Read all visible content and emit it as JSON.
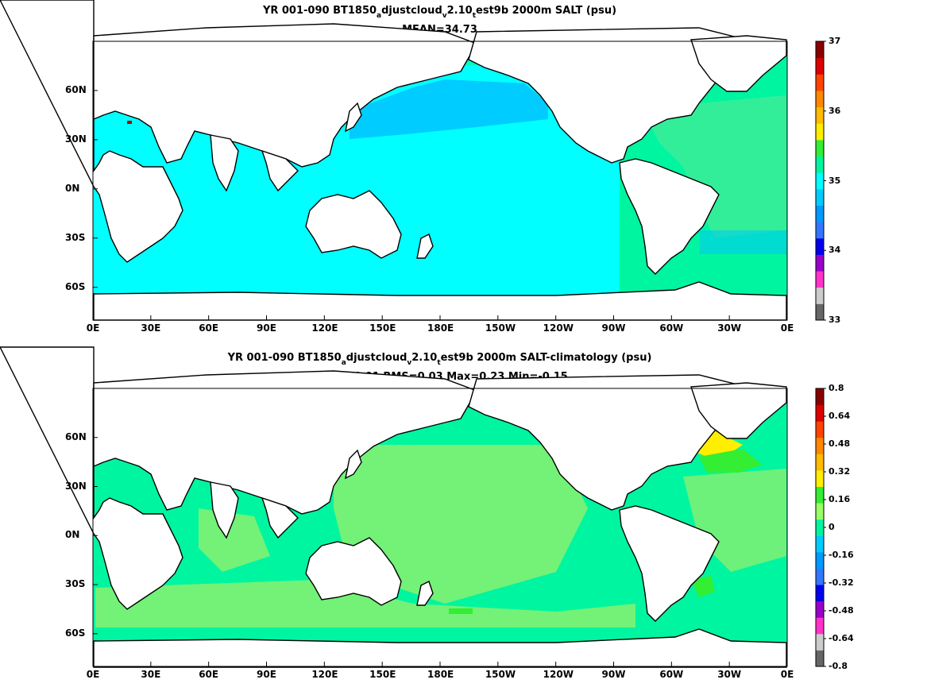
{
  "panel1": {
    "title_parts": [
      "YR 001-090 BT1850",
      "a",
      "djustcloud",
      "v",
      "2.10",
      "t",
      "est9b 2000m SALT (psu)"
    ],
    "stats": "MEAN=34.73",
    "colorbar_ticks": [
      "37",
      "36",
      "35",
      "34",
      "33"
    ],
    "colorbar_colors": [
      "#666666",
      "#cccccc",
      "#ff33cc",
      "#9900cc",
      "#0000ee",
      "#3377ff",
      "#0099ff",
      "#00ccff",
      "#00ffff",
      "#00f5a0",
      "#33ee33",
      "#ffee00",
      "#ffbb00",
      "#ff8800",
      "#ff4400",
      "#dd0000",
      "#880000"
    ]
  },
  "panel2": {
    "title_parts": [
      "YR 001-090 BT1850",
      "a",
      "djustcloud",
      "v",
      "2.10",
      "t",
      "est9b 2000m SALT-climatology (psu)"
    ],
    "stats": "MEAN=0.01   RMS=0.03   Max=0.23   Min=-0.15",
    "colorbar_ticks": [
      "0.8",
      "0.64",
      "0.48",
      "0.32",
      "0.16",
      "0",
      "-0.16",
      "-0.32",
      "-0.48",
      "-0.64",
      "-0.8"
    ],
    "colorbar_colors": [
      "#666666",
      "#cccccc",
      "#ff33cc",
      "#9900cc",
      "#0000ee",
      "#3377ff",
      "#0099ff",
      "#00ccff",
      "#00f5a0",
      "#99ff66",
      "#33ee33",
      "#ffee00",
      "#ffbb00",
      "#ff8800",
      "#ff4400",
      "#dd0000",
      "#880000"
    ]
  },
  "axes": {
    "x_ticks": [
      "0E",
      "30E",
      "60E",
      "90E",
      "120E",
      "150E",
      "180E",
      "150W",
      "120W",
      "90W",
      "60W",
      "30W",
      "0E"
    ],
    "y_ticks": [
      "60N",
      "30N",
      "0N",
      "30S",
      "60S"
    ]
  }
}
